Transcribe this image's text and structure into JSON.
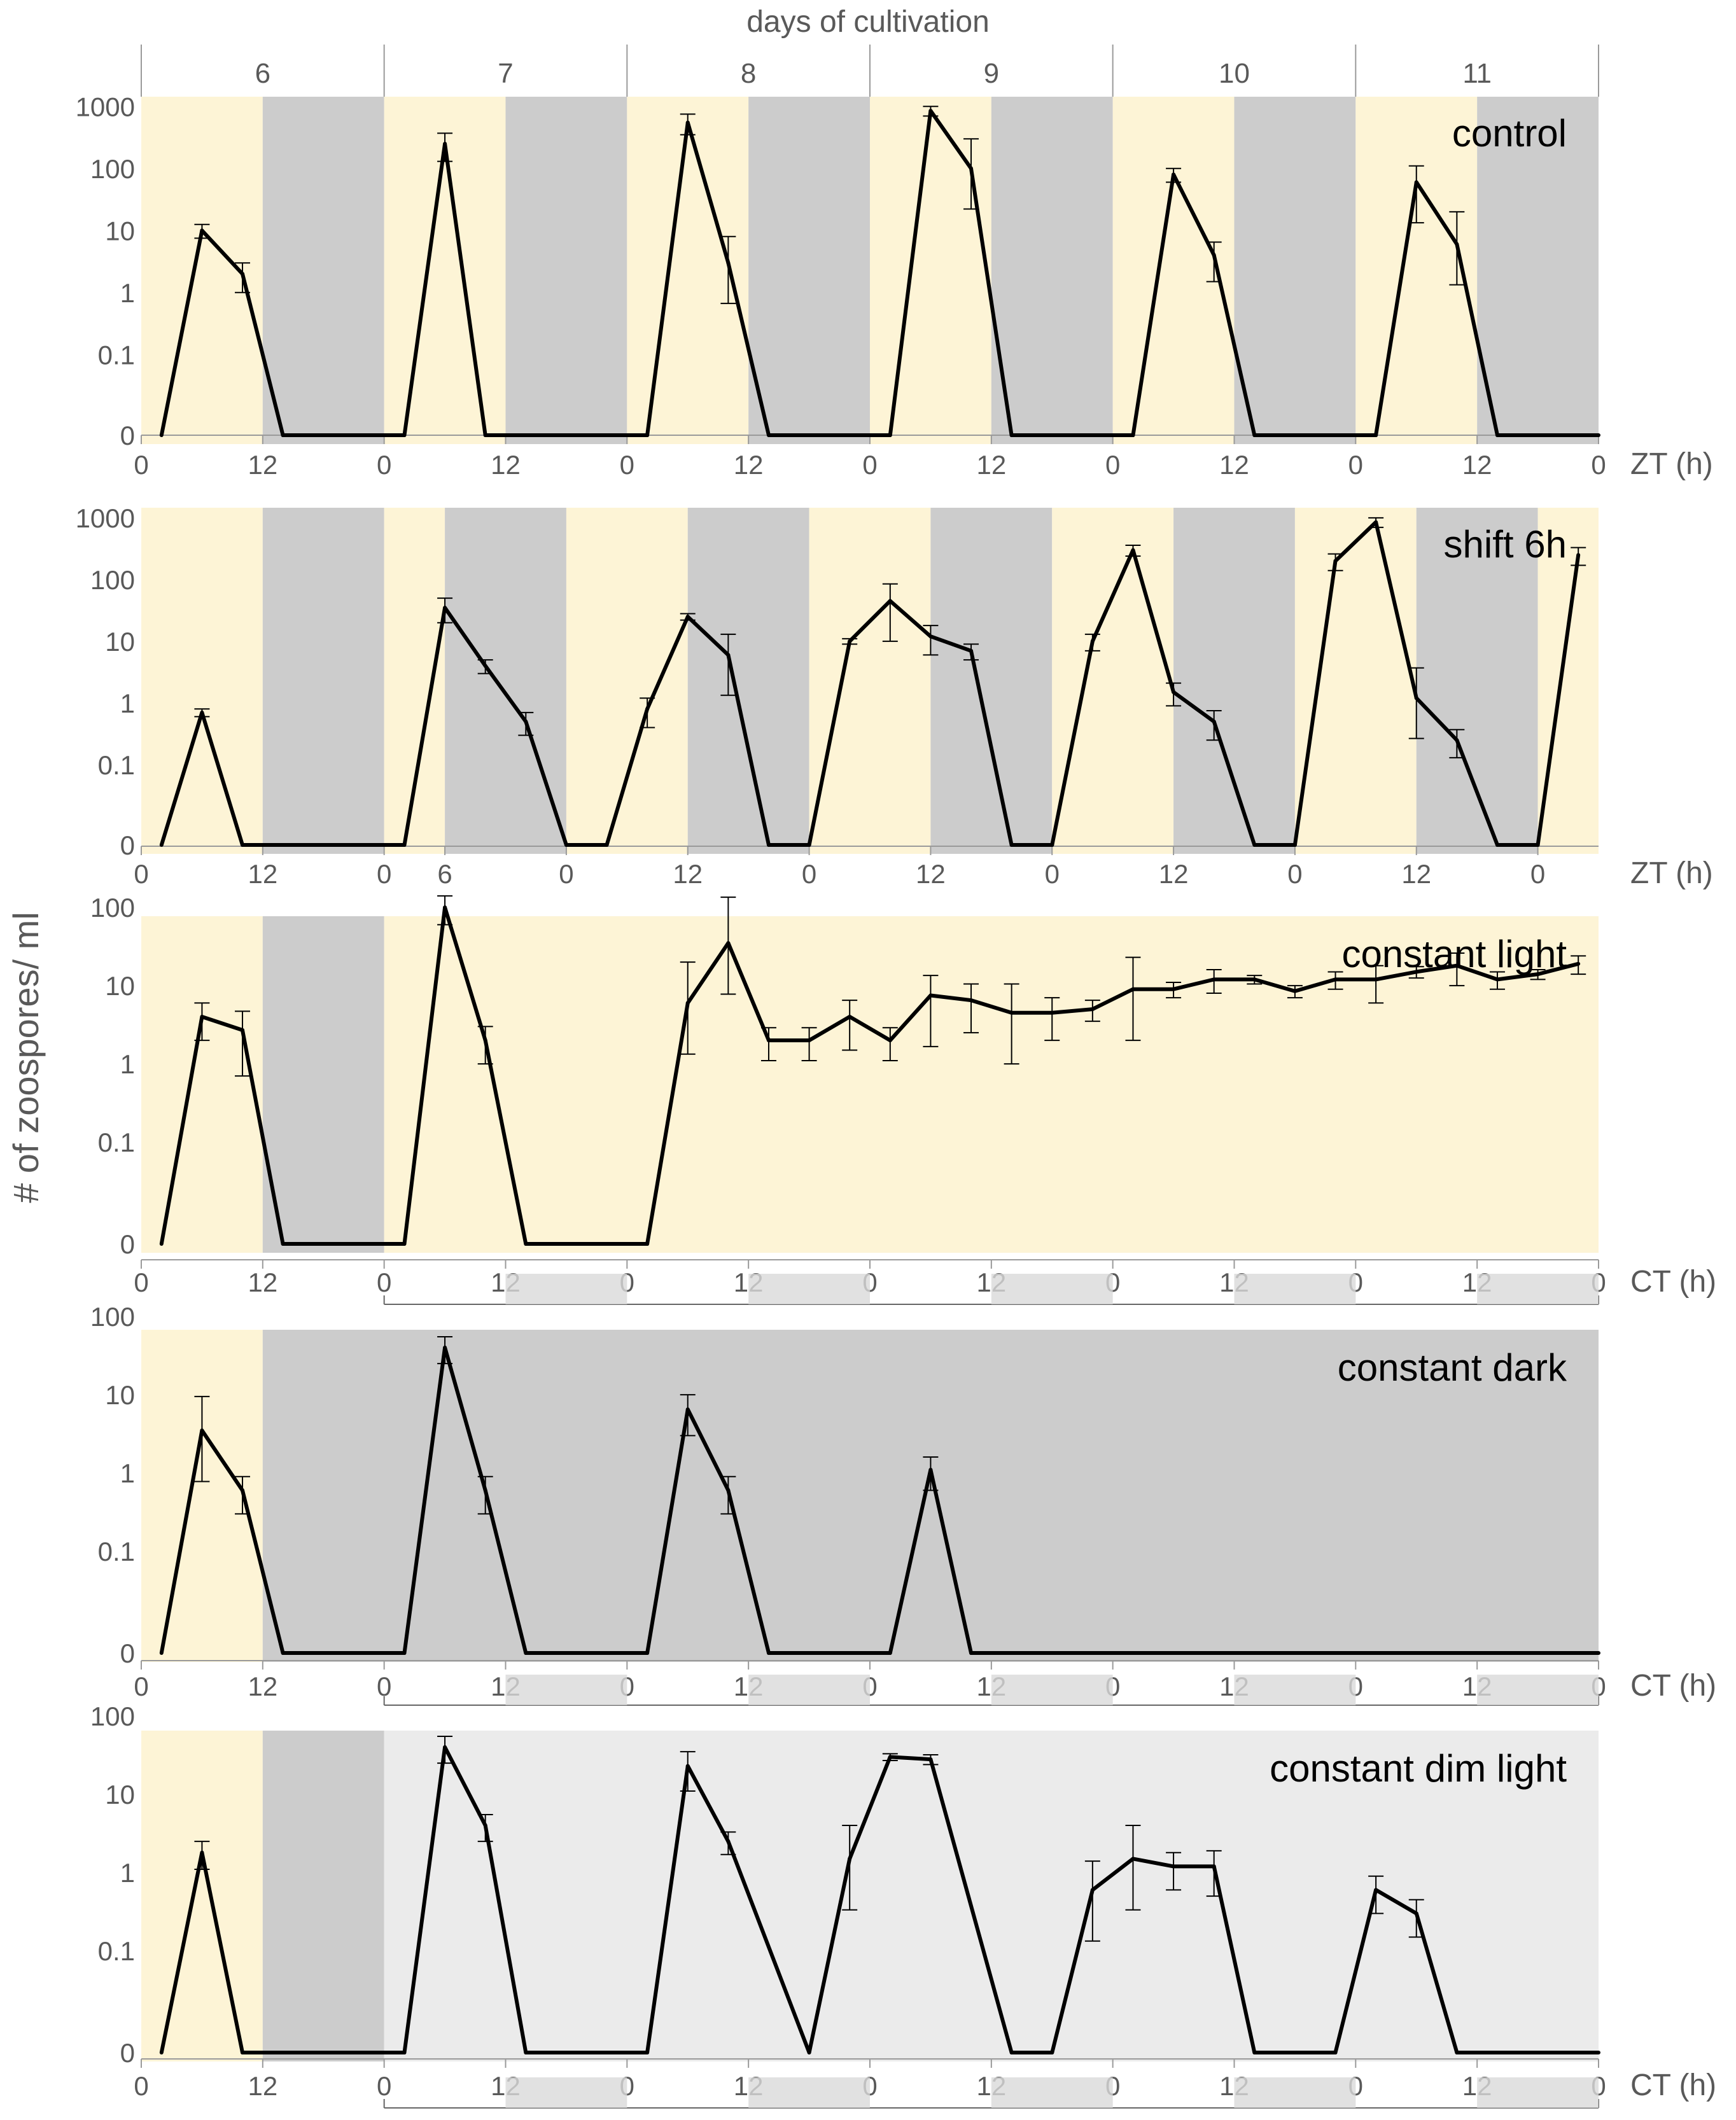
{
  "figure": {
    "top_title": "days of cultivation",
    "days": [
      "6",
      "7",
      "8",
      "9",
      "10",
      "11"
    ],
    "ylabel": "# of zoospores/ ml"
  },
  "colors": {
    "light": "#fdf4d6",
    "dark": "#cccccc",
    "dim": "#ebebeb",
    "line": "#000000",
    "text": "#595959"
  },
  "chart_data": [
    {
      "type": "line",
      "title": "control",
      "axis_label": "ZT (h)",
      "y_scale": "log",
      "y_ticks": [
        "1000",
        "100",
        "10",
        "1",
        "0.1",
        "0"
      ],
      "y_tick_values": [
        1000,
        100,
        10,
        1,
        0.1,
        0
      ],
      "x_tick_labels": [
        "0",
        "12",
        "0",
        "12",
        "0",
        "12",
        "0",
        "12",
        "0",
        "12",
        "0",
        "12",
        "0"
      ],
      "x_tick_hours": [
        0,
        12,
        24,
        36,
        48,
        60,
        72,
        84,
        96,
        108,
        120,
        132,
        144
      ],
      "xlim": [
        0,
        144
      ],
      "background": [
        {
          "start": 0,
          "end": 12,
          "phase": "light"
        },
        {
          "start": 12,
          "end": 24,
          "phase": "dark"
        },
        {
          "start": 24,
          "end": 36,
          "phase": "light"
        },
        {
          "start": 36,
          "end": 48,
          "phase": "dark"
        },
        {
          "start": 48,
          "end": 60,
          "phase": "light"
        },
        {
          "start": 60,
          "end": 72,
          "phase": "dark"
        },
        {
          "start": 72,
          "end": 84,
          "phase": "light"
        },
        {
          "start": 84,
          "end": 96,
          "phase": "dark"
        },
        {
          "start": 96,
          "end": 108,
          "phase": "light"
        },
        {
          "start": 108,
          "end": 120,
          "phase": "dark"
        },
        {
          "start": 120,
          "end": 132,
          "phase": "light"
        },
        {
          "start": 132,
          "end": 144,
          "phase": "dark"
        }
      ],
      "series": [
        {
          "x": [
            2,
            6,
            10,
            14,
            26,
            30,
            34,
            50,
            54,
            58,
            62,
            74,
            78,
            82,
            86,
            98,
            102,
            106,
            110,
            122,
            126,
            130,
            134,
            144
          ],
          "y": [
            0,
            10,
            2,
            0,
            0,
            250,
            0,
            0,
            550,
            3,
            0,
            0,
            850,
            100,
            0,
            0,
            80,
            4,
            0,
            0,
            60,
            6,
            0,
            0
          ],
          "err": [
            null,
            2.5,
            1,
            null,
            null,
            120,
            null,
            null,
            200,
            5,
            null,
            null,
            150,
            200,
            null,
            null,
            20,
            2.5,
            null,
            null,
            50,
            14,
            null,
            null
          ]
        }
      ]
    },
    {
      "type": "line",
      "title": "shift 6h",
      "axis_label": "ZT (h)",
      "y_scale": "log",
      "y_ticks": [
        "1000",
        "100",
        "10",
        "1",
        "0.1",
        "0"
      ],
      "y_tick_values": [
        1000,
        100,
        10,
        1,
        0.1,
        0
      ],
      "x_tick_labels": [
        "0",
        "12",
        "0",
        "6",
        "0",
        "12",
        "0",
        "12",
        "0",
        "12",
        "0",
        "12",
        "0"
      ],
      "x_tick_hours": [
        0,
        12,
        24,
        30,
        42,
        54,
        66,
        78,
        90,
        102,
        114,
        126,
        138
      ],
      "xlim": [
        0,
        144
      ],
      "background": [
        {
          "start": 0,
          "end": 12,
          "phase": "light"
        },
        {
          "start": 12,
          "end": 24,
          "phase": "dark"
        },
        {
          "start": 24,
          "end": 30,
          "phase": "light"
        },
        {
          "start": 30,
          "end": 42,
          "phase": "dark"
        },
        {
          "start": 42,
          "end": 54,
          "phase": "light"
        },
        {
          "start": 54,
          "end": 66,
          "phase": "dark"
        },
        {
          "start": 66,
          "end": 78,
          "phase": "light"
        },
        {
          "start": 78,
          "end": 90,
          "phase": "dark"
        },
        {
          "start": 90,
          "end": 102,
          "phase": "light"
        },
        {
          "start": 102,
          "end": 114,
          "phase": "dark"
        },
        {
          "start": 114,
          "end": 126,
          "phase": "light"
        },
        {
          "start": 126,
          "end": 138,
          "phase": "dark"
        },
        {
          "start": 138,
          "end": 144,
          "phase": "light"
        }
      ],
      "series": [
        {
          "x": [
            2,
            6,
            10,
            26,
            30,
            34,
            38,
            42,
            46,
            50,
            54,
            58,
            62,
            66,
            70,
            74,
            78,
            82,
            86,
            90,
            94,
            98,
            102,
            106,
            110,
            114,
            118,
            122,
            126,
            130,
            134,
            138,
            142
          ],
          "y": [
            0,
            0.7,
            0,
            0,
            35,
            4,
            0.5,
            0,
            0,
            0.8,
            25,
            6,
            0,
            0,
            10,
            45,
            12,
            7,
            0,
            0,
            10,
            300,
            1.5,
            0.5,
            0,
            0,
            200,
            850,
            1.2,
            0.25,
            0,
            0,
            250
          ],
          "err": [
            null,
            0.1,
            null,
            null,
            15,
            1,
            0.2,
            null,
            null,
            0.4,
            3,
            7,
            null,
            null,
            1,
            40,
            6,
            2,
            null,
            null,
            3,
            60,
            0.6,
            0.25,
            null,
            null,
            60,
            150,
            2.5,
            0.12,
            null,
            null,
            80
          ]
        }
      ]
    },
    {
      "type": "line",
      "title": "constant light",
      "axis_label": "CT (h)",
      "y_scale": "log",
      "y_ticks": [
        "100",
        "10",
        "1",
        "0.1",
        "0"
      ],
      "y_tick_values": [
        100,
        10,
        1,
        0.1,
        0
      ],
      "x_tick_labels": [
        "0",
        "12",
        "0",
        "12",
        "0",
        "12",
        "0",
        "12",
        "0",
        "12",
        "0",
        "12",
        "0"
      ],
      "x_tick_hours": [
        0,
        12,
        24,
        36,
        48,
        60,
        72,
        84,
        96,
        108,
        120,
        132,
        144
      ],
      "xlim": [
        0,
        144
      ],
      "background": [
        {
          "start": 0,
          "end": 12,
          "phase": "light"
        },
        {
          "start": 12,
          "end": 24,
          "phase": "dark"
        },
        {
          "start": 24,
          "end": 144,
          "phase": "light"
        }
      ],
      "series": [
        {
          "x": [
            2,
            6,
            10,
            14,
            26,
            30,
            34,
            38,
            50,
            54,
            58,
            62,
            66,
            70,
            74,
            78,
            82,
            86,
            90,
            94,
            98,
            102,
            106,
            110,
            114,
            118,
            122,
            126,
            130,
            134,
            138,
            142
          ],
          "y": [
            0,
            4,
            2.7,
            0,
            0,
            100,
            2,
            0,
            0,
            6,
            35,
            2,
            2,
            4,
            2,
            7.5,
            6.5,
            4.5,
            4.5,
            5,
            9,
            9,
            12,
            12,
            8.5,
            12,
            12,
            15,
            18,
            12,
            14,
            19
          ],
          "err": [
            null,
            2,
            2,
            null,
            null,
            40,
            1,
            null,
            null,
            14,
            100,
            0.9,
            0.9,
            2.5,
            0.9,
            6,
            4,
            6,
            2.5,
            1.5,
            14,
            2,
            4,
            1.5,
            1.5,
            3,
            6,
            2.5,
            8,
            3,
            2,
            5
          ]
        }
      ]
    },
    {
      "type": "line",
      "title": "constant dark",
      "axis_label": "CT (h)",
      "y_scale": "log",
      "y_ticks": [
        "100",
        "10",
        "1",
        "0.1",
        "0"
      ],
      "y_tick_values": [
        100,
        10,
        1,
        0.1,
        0
      ],
      "x_tick_labels": [
        "0",
        "12",
        "0",
        "12",
        "0",
        "12",
        "0",
        "12",
        "0",
        "12",
        "0",
        "12",
        "0"
      ],
      "x_tick_hours": [
        0,
        12,
        24,
        36,
        48,
        60,
        72,
        84,
        96,
        108,
        120,
        132,
        144
      ],
      "xlim": [
        0,
        144
      ],
      "background": [
        {
          "start": 0,
          "end": 12,
          "phase": "light"
        },
        {
          "start": 12,
          "end": 144,
          "phase": "dark"
        }
      ],
      "series": [
        {
          "x": [
            2,
            6,
            10,
            14,
            26,
            30,
            34,
            38,
            50,
            54,
            58,
            62,
            74,
            78,
            82,
            144
          ],
          "y": [
            0,
            3.5,
            0.6,
            0,
            0,
            40,
            0.6,
            0,
            0,
            6.5,
            0.6,
            0,
            0,
            1.1,
            0,
            0
          ],
          "err": [
            null,
            6,
            0.3,
            null,
            null,
            15,
            0.3,
            null,
            null,
            3.5,
            0.3,
            null,
            null,
            0.5,
            null,
            null
          ]
        }
      ]
    },
    {
      "type": "line",
      "title": "constant dim light",
      "axis_label": "CT (h)",
      "y_scale": "log",
      "y_ticks": [
        "100",
        "10",
        "1",
        "0.1",
        "0"
      ],
      "y_tick_values": [
        100,
        10,
        1,
        0.1,
        0
      ],
      "x_tick_labels": [
        "0",
        "12",
        "0",
        "12",
        "0",
        "12",
        "0",
        "12",
        "0",
        "12",
        "0",
        "12",
        "0"
      ],
      "x_tick_hours": [
        0,
        12,
        24,
        36,
        48,
        60,
        72,
        84,
        96,
        108,
        120,
        132,
        144
      ],
      "xlim": [
        0,
        144
      ],
      "background": [
        {
          "start": 0,
          "end": 12,
          "phase": "light"
        },
        {
          "start": 12,
          "end": 24,
          "phase": "dark"
        },
        {
          "start": 24,
          "end": 144,
          "phase": "dim"
        }
      ],
      "series": [
        {
          "x": [
            2,
            6,
            10,
            26,
            30,
            34,
            38,
            50,
            54,
            58,
            66,
            70,
            74,
            78,
            86,
            90,
            94,
            98,
            102,
            106,
            110,
            114,
            118,
            122,
            126,
            130,
            134,
            144
          ],
          "y": [
            0,
            1.8,
            0,
            0,
            40,
            4,
            0,
            0,
            23,
            2.5,
            0,
            1.5,
            30,
            28,
            0,
            0,
            0.6,
            1.5,
            1.2,
            1.2,
            0,
            0,
            0,
            0.6,
            0.3,
            0,
            0,
            0
          ],
          "err": [
            null,
            0.7,
            null,
            null,
            15,
            1.5,
            null,
            null,
            12,
            0.8,
            null,
            2.5,
            3,
            4,
            null,
            null,
            0.8,
            2.5,
            0.6,
            0.7,
            null,
            null,
            null,
            0.3,
            0.15,
            null,
            null,
            null
          ]
        }
      ]
    }
  ]
}
